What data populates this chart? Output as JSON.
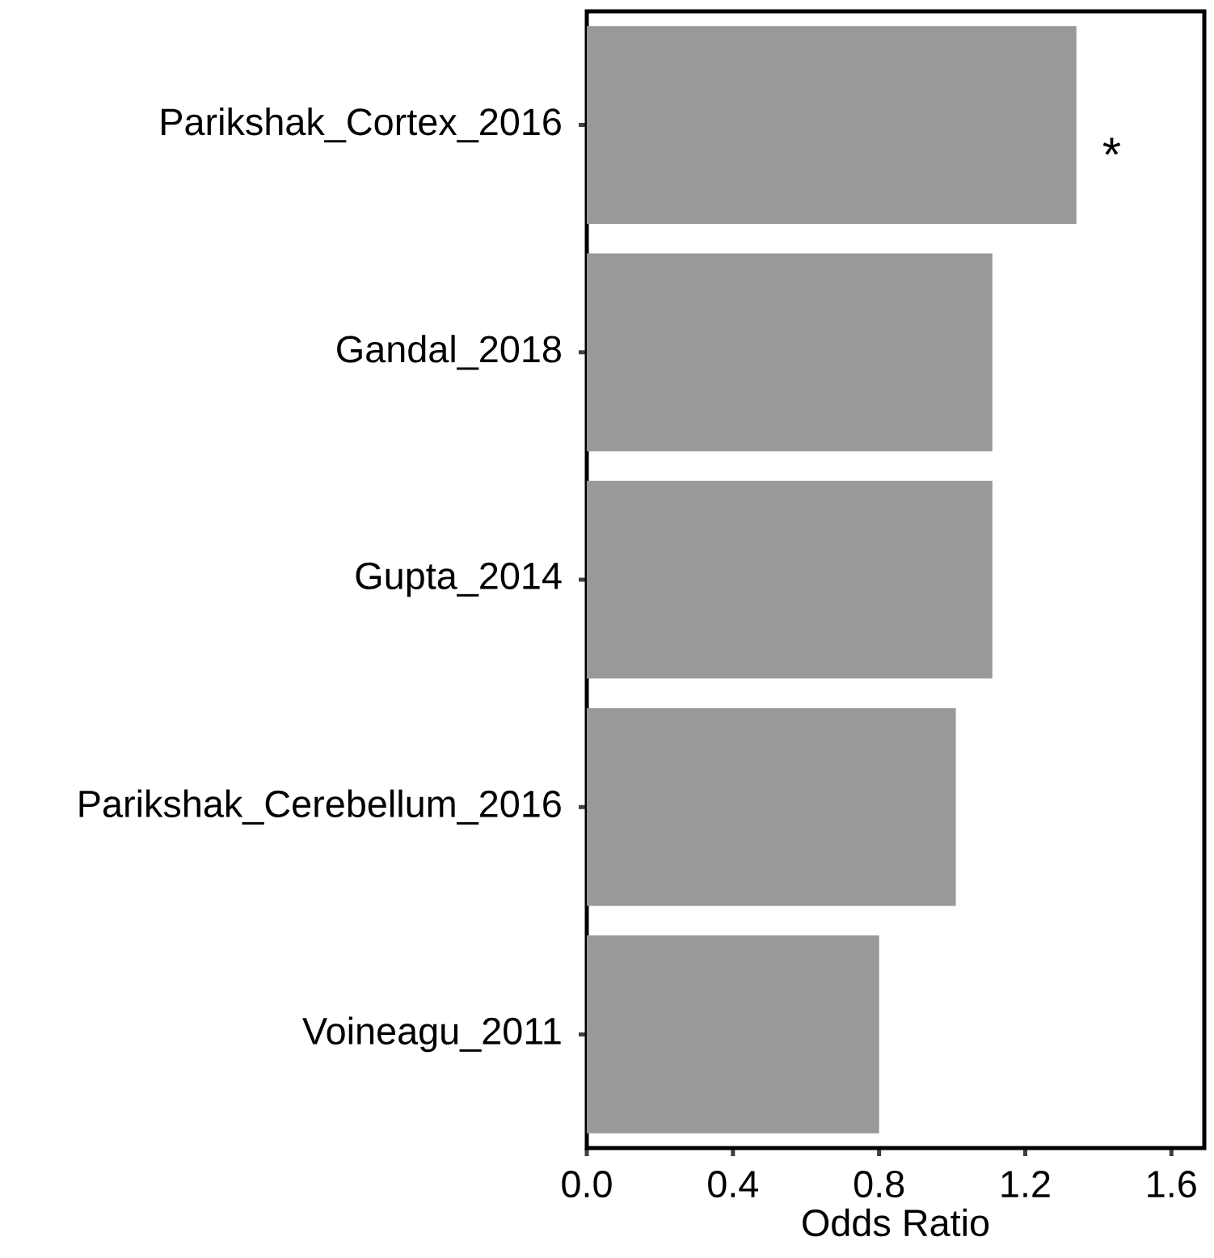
{
  "chart_data": {
    "type": "bar",
    "orientation": "horizontal",
    "xlabel": "Odds Ratio",
    "categories": [
      "Parikshak_Cortex_2016",
      "Gandal_2018",
      "Gupta_2014",
      "Parikshak_Cerebellum_2016",
      "Voineagu_2011"
    ],
    "values": [
      1.34,
      1.11,
      1.11,
      1.01,
      0.8
    ],
    "color": "#999999",
    "xlim": [
      0,
      1.69
    ],
    "xticks": [
      {
        "value": 0,
        "label": "0.0"
      },
      0.4,
      0.8,
      1.2,
      1.6
    ],
    "annotations": [
      "*"
    ],
    "grid": false
  }
}
